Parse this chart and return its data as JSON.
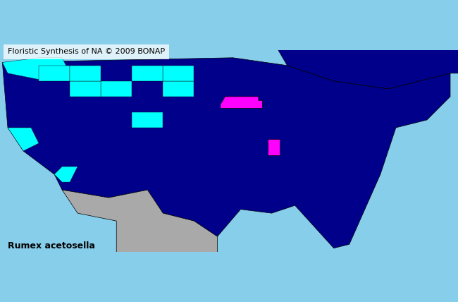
{
  "title_text": "Floristic Synthesis of NA © 2009 BONAP",
  "subtitle_text": "Rumex acetosella",
  "background_color": "#87CEEB",
  "figsize": [
    6.5,
    4.28
  ],
  "dpi": 100,
  "colors": {
    "background": "#87CEEB",
    "dark_blue": "#00008B",
    "cyan": "#00FFFF",
    "magenta": "#FF00FF",
    "gray": "#A9A9A9",
    "county_edge": "#222222",
    "dark_navy": "#000050"
  },
  "map_xlim": [
    -125,
    -66
  ],
  "map_ylim": [
    24,
    50
  ],
  "title_fontsize": 8,
  "subtitle_fontsize": 9
}
